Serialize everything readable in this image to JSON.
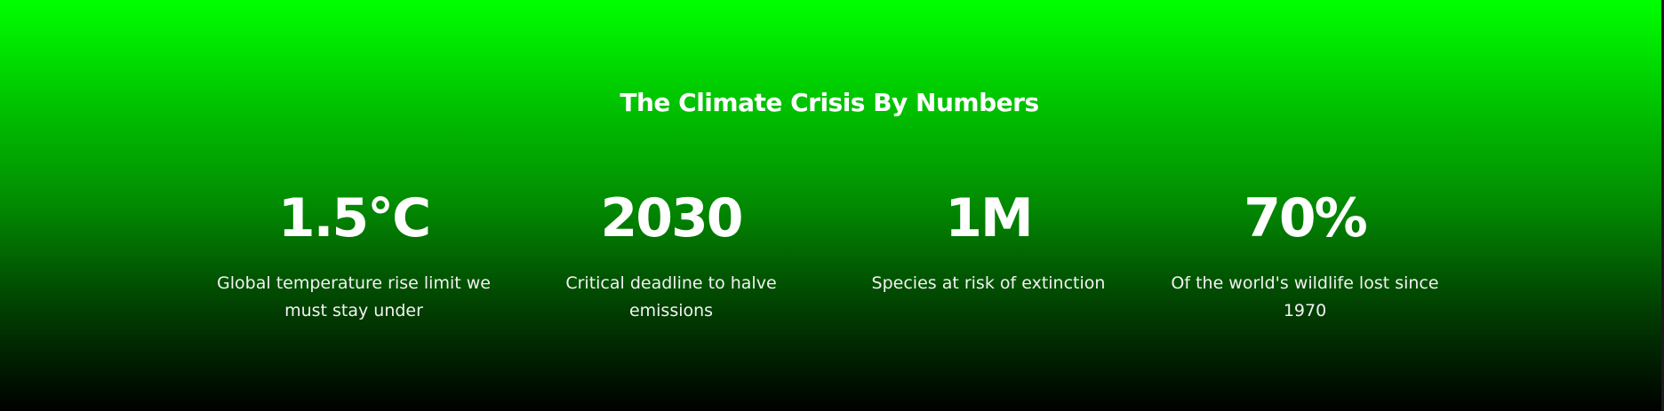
{
  "section": {
    "title": "The Climate Crisis By Numbers",
    "stats": [
      {
        "value": "1.5°C",
        "label": "Global temperature rise limit we must stay under"
      },
      {
        "value": "2030",
        "label": "Critical deadline to halve emissions"
      },
      {
        "value": "1M",
        "label": "Species at risk of extinction"
      },
      {
        "value": "70%",
        "label": "Of the world's wildlife lost since 1970"
      }
    ]
  },
  "colors": {
    "gradient_top": "#00ff00",
    "gradient_bottom": "#000000",
    "text": "#ffffff"
  }
}
